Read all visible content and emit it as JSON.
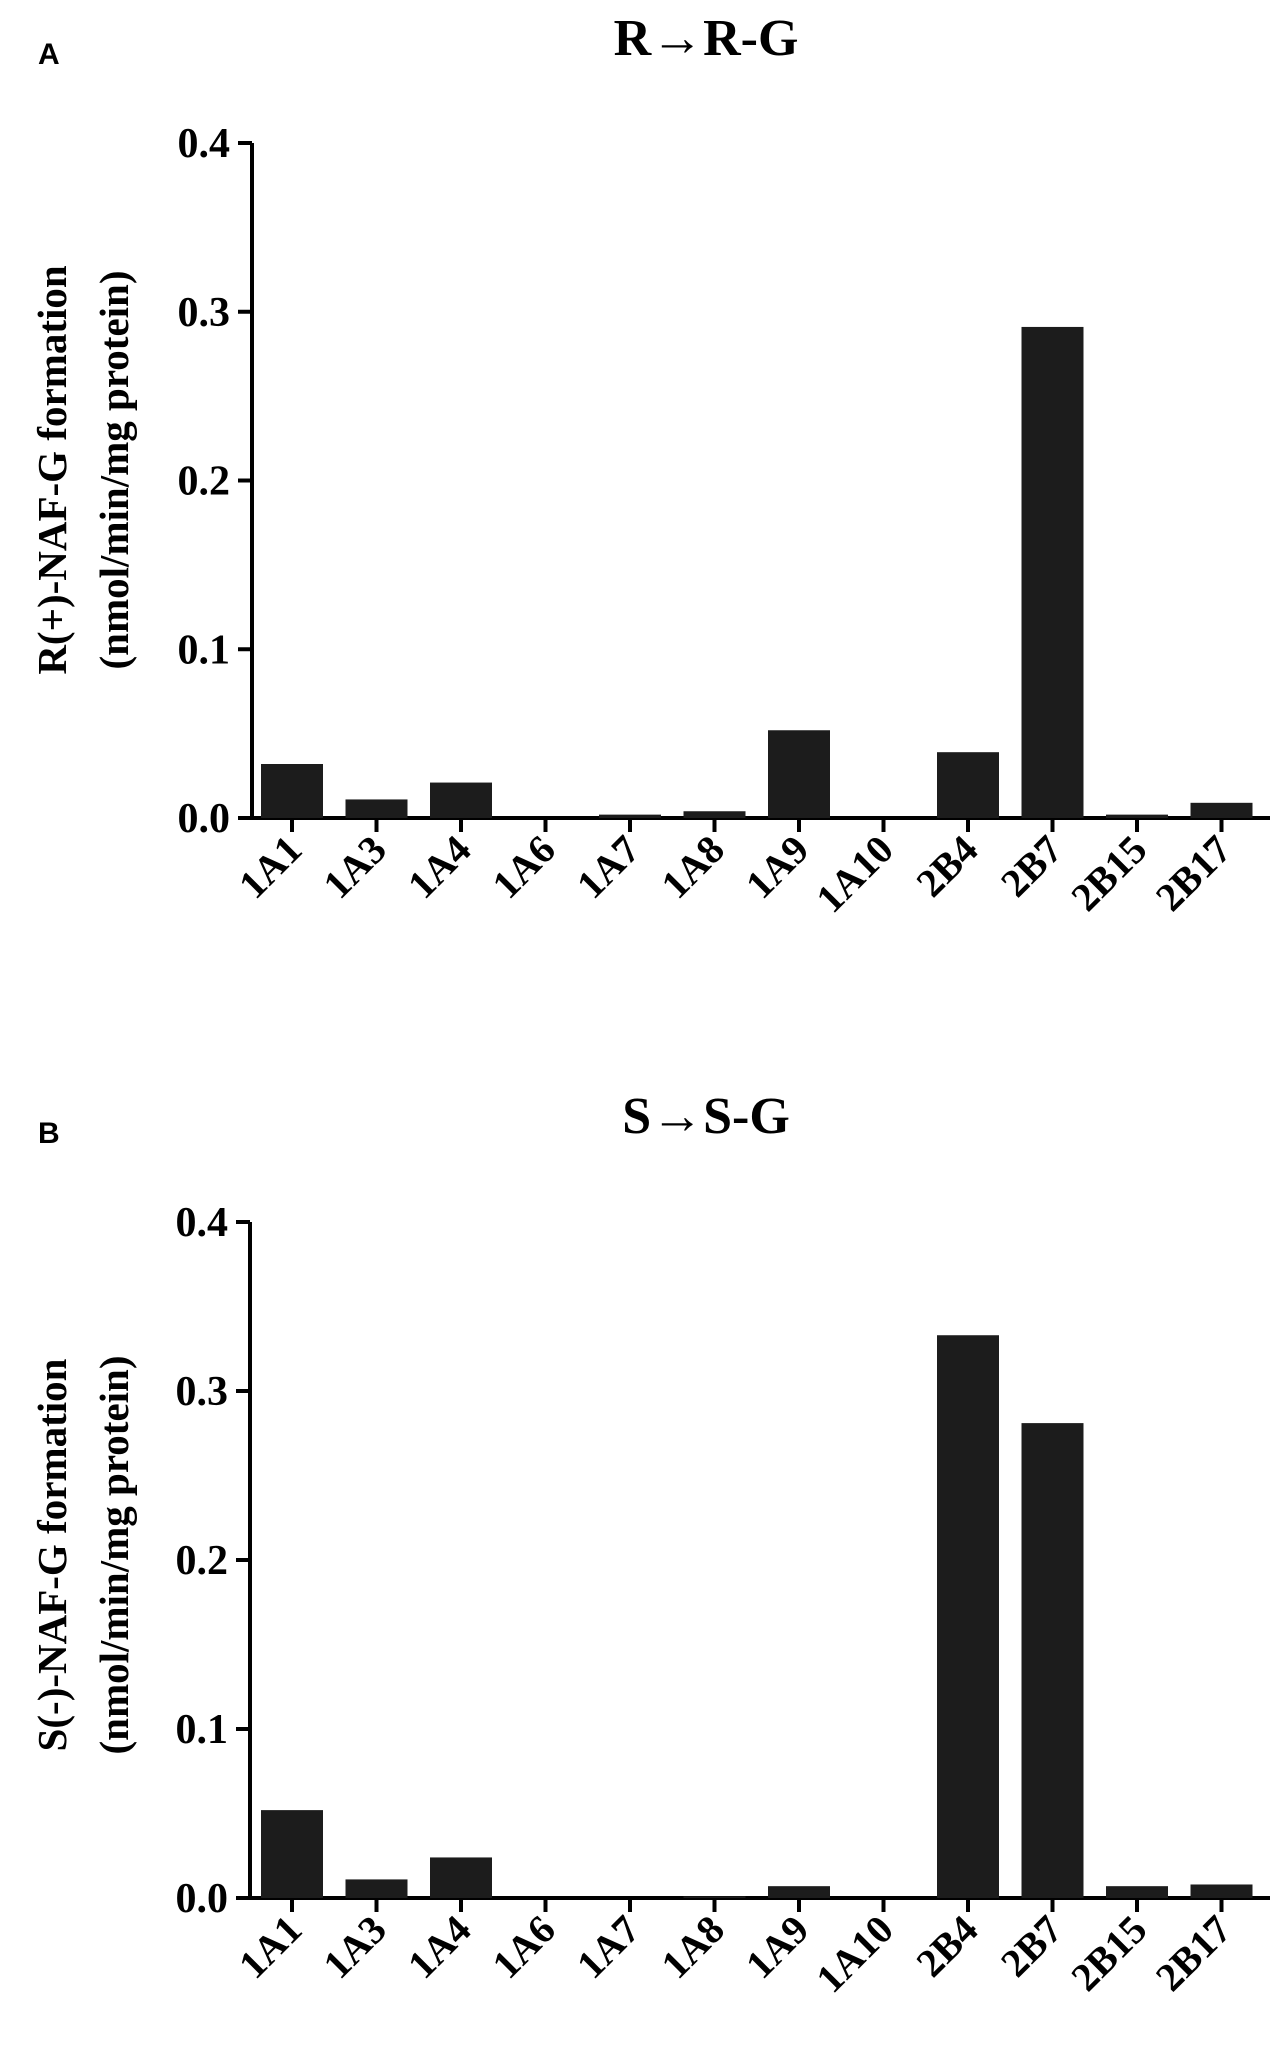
{
  "chart_data": [
    {
      "type": "bar",
      "panel": "A",
      "title": "R→R-G",
      "ylabel_line1": "R(+)-NAF-G formation",
      "ylabel_line2": "(nmol/min/mg protein)",
      "xlabel": "",
      "ylim": [
        0,
        0.4
      ],
      "yticks": [
        "0.0",
        "0.1",
        "0.2",
        "0.3",
        "0.4"
      ],
      "categories": [
        "1A1",
        "1A3",
        "1A4",
        "1A6",
        "1A7",
        "1A8",
        "1A9",
        "1A10",
        "2B4",
        "2B7",
        "2B15",
        "2B17"
      ],
      "values": [
        0.032,
        0.011,
        0.021,
        0.0,
        0.002,
        0.004,
        0.052,
        0.0,
        0.039,
        0.291,
        0.002,
        0.009
      ],
      "bar_color": "#1c1c1c"
    },
    {
      "type": "bar",
      "panel": "B",
      "title": "S→S-G",
      "ylabel_line1": "S(-)-NAF-G formation",
      "ylabel_line2": "(nmol/min/mg protein)",
      "xlabel": "",
      "ylim": [
        0,
        0.4
      ],
      "yticks": [
        "0.0",
        "0.1",
        "0.2",
        "0.3",
        "0.4"
      ],
      "categories": [
        "1A1",
        "1A3",
        "1A4",
        "1A6",
        "1A7",
        "1A8",
        "1A9",
        "1A10",
        "2B4",
        "2B7",
        "2B15",
        "2B17"
      ],
      "values": [
        0.052,
        0.011,
        0.024,
        0.0,
        0.0,
        0.001,
        0.007,
        0.0,
        0.333,
        0.281,
        0.007,
        0.008
      ],
      "bar_color": "#1c1c1c"
    }
  ]
}
